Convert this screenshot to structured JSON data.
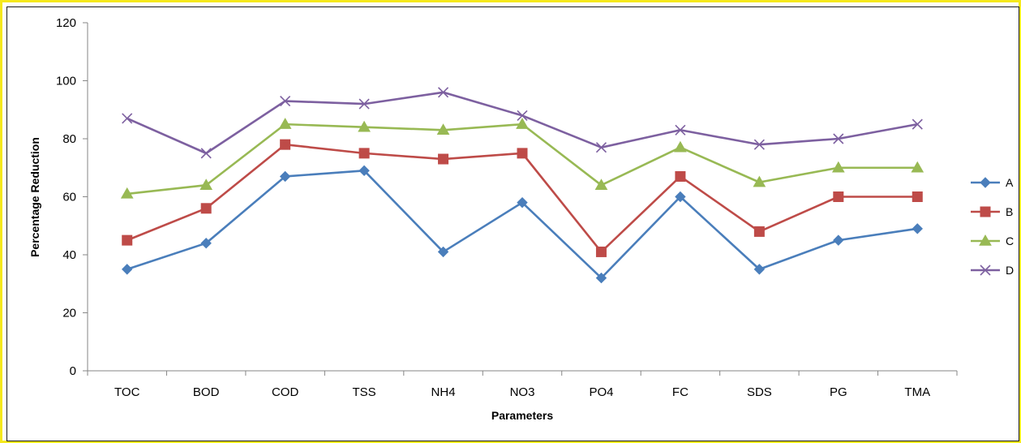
{
  "chart_data": {
    "type": "line",
    "title": "",
    "xlabel": "Parameters",
    "ylabel": "Percentage Reduction",
    "ylim": [
      0,
      120
    ],
    "yticks": [
      0,
      20,
      40,
      60,
      80,
      100,
      120
    ],
    "grid": false,
    "legend_position": "right",
    "categories": [
      "TOC",
      "BOD",
      "COD",
      "TSS",
      "NH4",
      "NO3",
      "PO4",
      "FC",
      "SDS",
      "PG",
      "TMA"
    ],
    "series": [
      {
        "name": "A",
        "color": "#4a7ebb",
        "marker": "diamond",
        "values": [
          35,
          44,
          67,
          69,
          41,
          58,
          32,
          60,
          35,
          45,
          49
        ]
      },
      {
        "name": "B",
        "color": "#be4b48",
        "marker": "square",
        "values": [
          45,
          56,
          78,
          75,
          73,
          75,
          41,
          67,
          48,
          60,
          60
        ]
      },
      {
        "name": "C",
        "color": "#98b954",
        "marker": "triangle",
        "values": [
          61,
          64,
          85,
          84,
          83,
          85,
          64,
          77,
          65,
          70,
          70
        ]
      },
      {
        "name": "D",
        "color": "#7d60a0",
        "marker": "x",
        "values": [
          87,
          75,
          93,
          92,
          96,
          88,
          77,
          83,
          78,
          80,
          85
        ]
      }
    ]
  }
}
